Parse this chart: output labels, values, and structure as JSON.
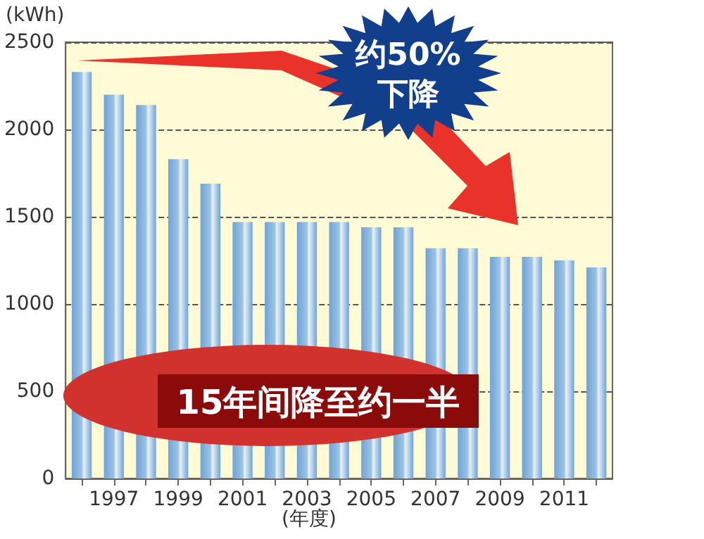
{
  "chart_data": {
    "type": "bar",
    "xlabel": "(年度)",
    "ylabel": "(kWh)",
    "categories": [
      null,
      "1997",
      null,
      "1999",
      null,
      "2001",
      null,
      "2003",
      null,
      "2005",
      null,
      "2007",
      null,
      "2009",
      null,
      "2011",
      null
    ],
    "values": [
      2330,
      2200,
      2140,
      1830,
      1690,
      1470,
      1470,
      1470,
      1470,
      1440,
      1440,
      1320,
      1320,
      1270,
      1270,
      1250,
      1210
    ],
    "color": "#9dc3e6",
    "ylim": [
      0,
      2500
    ],
    "yticks": [
      0,
      500,
      1000,
      1500,
      2000,
      2500
    ],
    "grid": "y",
    "annotations": [
      "约50%\n下降",
      "15年间降至约一半"
    ]
  }
}
